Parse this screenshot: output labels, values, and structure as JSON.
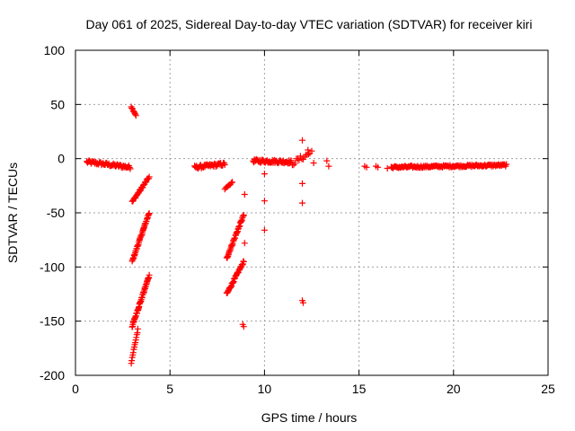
{
  "chart_data": {
    "type": "scatter",
    "title": "Day 061 of 2025, Sidereal Day-to-day VTEC variation (SDTVAR) for receiver kiri",
    "xlabel": "GPS time / hours",
    "ylabel": "SDTVAR / TECUs",
    "xlim": [
      0,
      25
    ],
    "ylim": [
      -200,
      100
    ],
    "x_ticks": [
      "0",
      "5",
      "10",
      "15",
      "20",
      "25"
    ],
    "y_ticks": [
      "100",
      "50",
      "0",
      "-50",
      "-100",
      "-150",
      "-200"
    ],
    "grid": true,
    "marker": "plus",
    "color": "#ff0000",
    "segments": [
      {
        "x0": 0.6,
        "x1": 2.9,
        "y0": -3,
        "y1": -8,
        "n": 60,
        "jitter": 3
      },
      {
        "x0": 2.95,
        "x1": 3.2,
        "y0": 48,
        "y1": 40,
        "n": 8,
        "jitter": 1
      },
      {
        "x0": 3.0,
        "x1": 3.9,
        "y0": -40,
        "y1": -17,
        "n": 30,
        "jitter": 2
      },
      {
        "x0": 3.0,
        "x1": 3.9,
        "y0": -95,
        "y1": -50,
        "n": 45,
        "jitter": 2
      },
      {
        "x0": 3.0,
        "x1": 3.9,
        "y0": -155,
        "y1": -108,
        "n": 50,
        "jitter": 2
      },
      {
        "x0": 2.95,
        "x1": 3.3,
        "y0": -188,
        "y1": -158,
        "n": 14,
        "jitter": 2
      },
      {
        "x0": 6.3,
        "x1": 7.9,
        "y0": -8,
        "y1": -5,
        "n": 45,
        "jitter": 3
      },
      {
        "x0": 7.9,
        "x1": 8.3,
        "y0": -28,
        "y1": -22,
        "n": 8,
        "jitter": 1
      },
      {
        "x0": 8.0,
        "x1": 8.9,
        "y0": -92,
        "y1": -52,
        "n": 40,
        "jitter": 2
      },
      {
        "x0": 8.0,
        "x1": 8.9,
        "y0": -125,
        "y1": -95,
        "n": 40,
        "jitter": 2
      },
      {
        "x0": 9.4,
        "x1": 11.4,
        "y0": -2,
        "y1": -3,
        "n": 60,
        "jitter": 3
      },
      {
        "x0": 11.4,
        "x1": 12.4,
        "y0": -5,
        "y1": 5,
        "n": 15,
        "jitter": 5
      },
      {
        "x0": 16.7,
        "x1": 22.8,
        "y0": -8,
        "y1": -6,
        "n": 140,
        "jitter": 2
      }
    ],
    "points": [
      [
        8.95,
        -33
      ],
      [
        8.95,
        -78
      ],
      [
        8.9,
        -155
      ],
      [
        8.85,
        -153
      ],
      [
        10.0,
        -14
      ],
      [
        10.0,
        -39
      ],
      [
        10.0,
        -66
      ],
      [
        12.0,
        17
      ],
      [
        12.0,
        -23
      ],
      [
        12.0,
        -41
      ],
      [
        12.0,
        -131
      ],
      [
        12.05,
        -133
      ],
      [
        12.3,
        8
      ],
      [
        12.5,
        7
      ],
      [
        12.6,
        -4
      ],
      [
        13.3,
        -2
      ],
      [
        13.4,
        -7
      ],
      [
        15.3,
        -7
      ],
      [
        15.4,
        -8
      ],
      [
        15.9,
        -7
      ],
      [
        16.0,
        -8
      ],
      [
        16.5,
        -9
      ]
    ]
  }
}
